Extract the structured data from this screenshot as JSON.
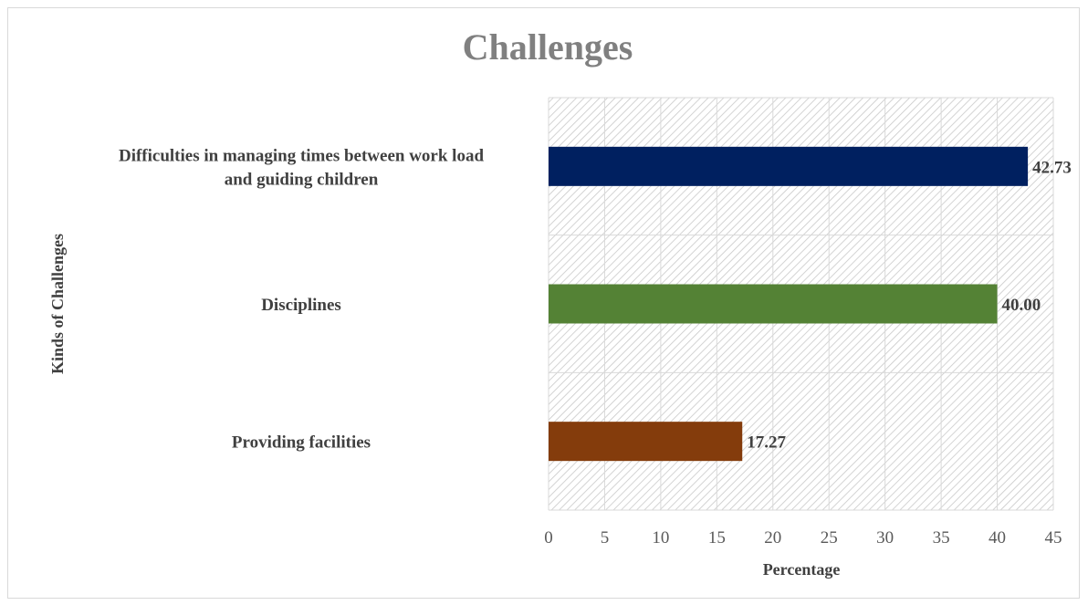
{
  "chart_data": {
    "type": "bar",
    "orientation": "horizontal",
    "title": "Challenges",
    "xlabel": "Percentage",
    "ylabel": "Kinds of Challenges",
    "xlim": [
      0,
      45
    ],
    "xticks": [
      0,
      5,
      10,
      15,
      20,
      25,
      30,
      35,
      40,
      45
    ],
    "grid": true,
    "plot_background": "diagonal-hatch",
    "categories": [
      [
        "Difficulties in managing times between work load",
        "and guiding children"
      ],
      [
        "Disciplines"
      ],
      [
        "Providing facilities"
      ]
    ],
    "values": [
      42.73,
      40.0,
      17.27
    ],
    "data_labels": [
      "42.73",
      "40.00",
      "17.27"
    ],
    "bar_colors": [
      "#002060",
      "#548235",
      "#843C0C"
    ]
  }
}
